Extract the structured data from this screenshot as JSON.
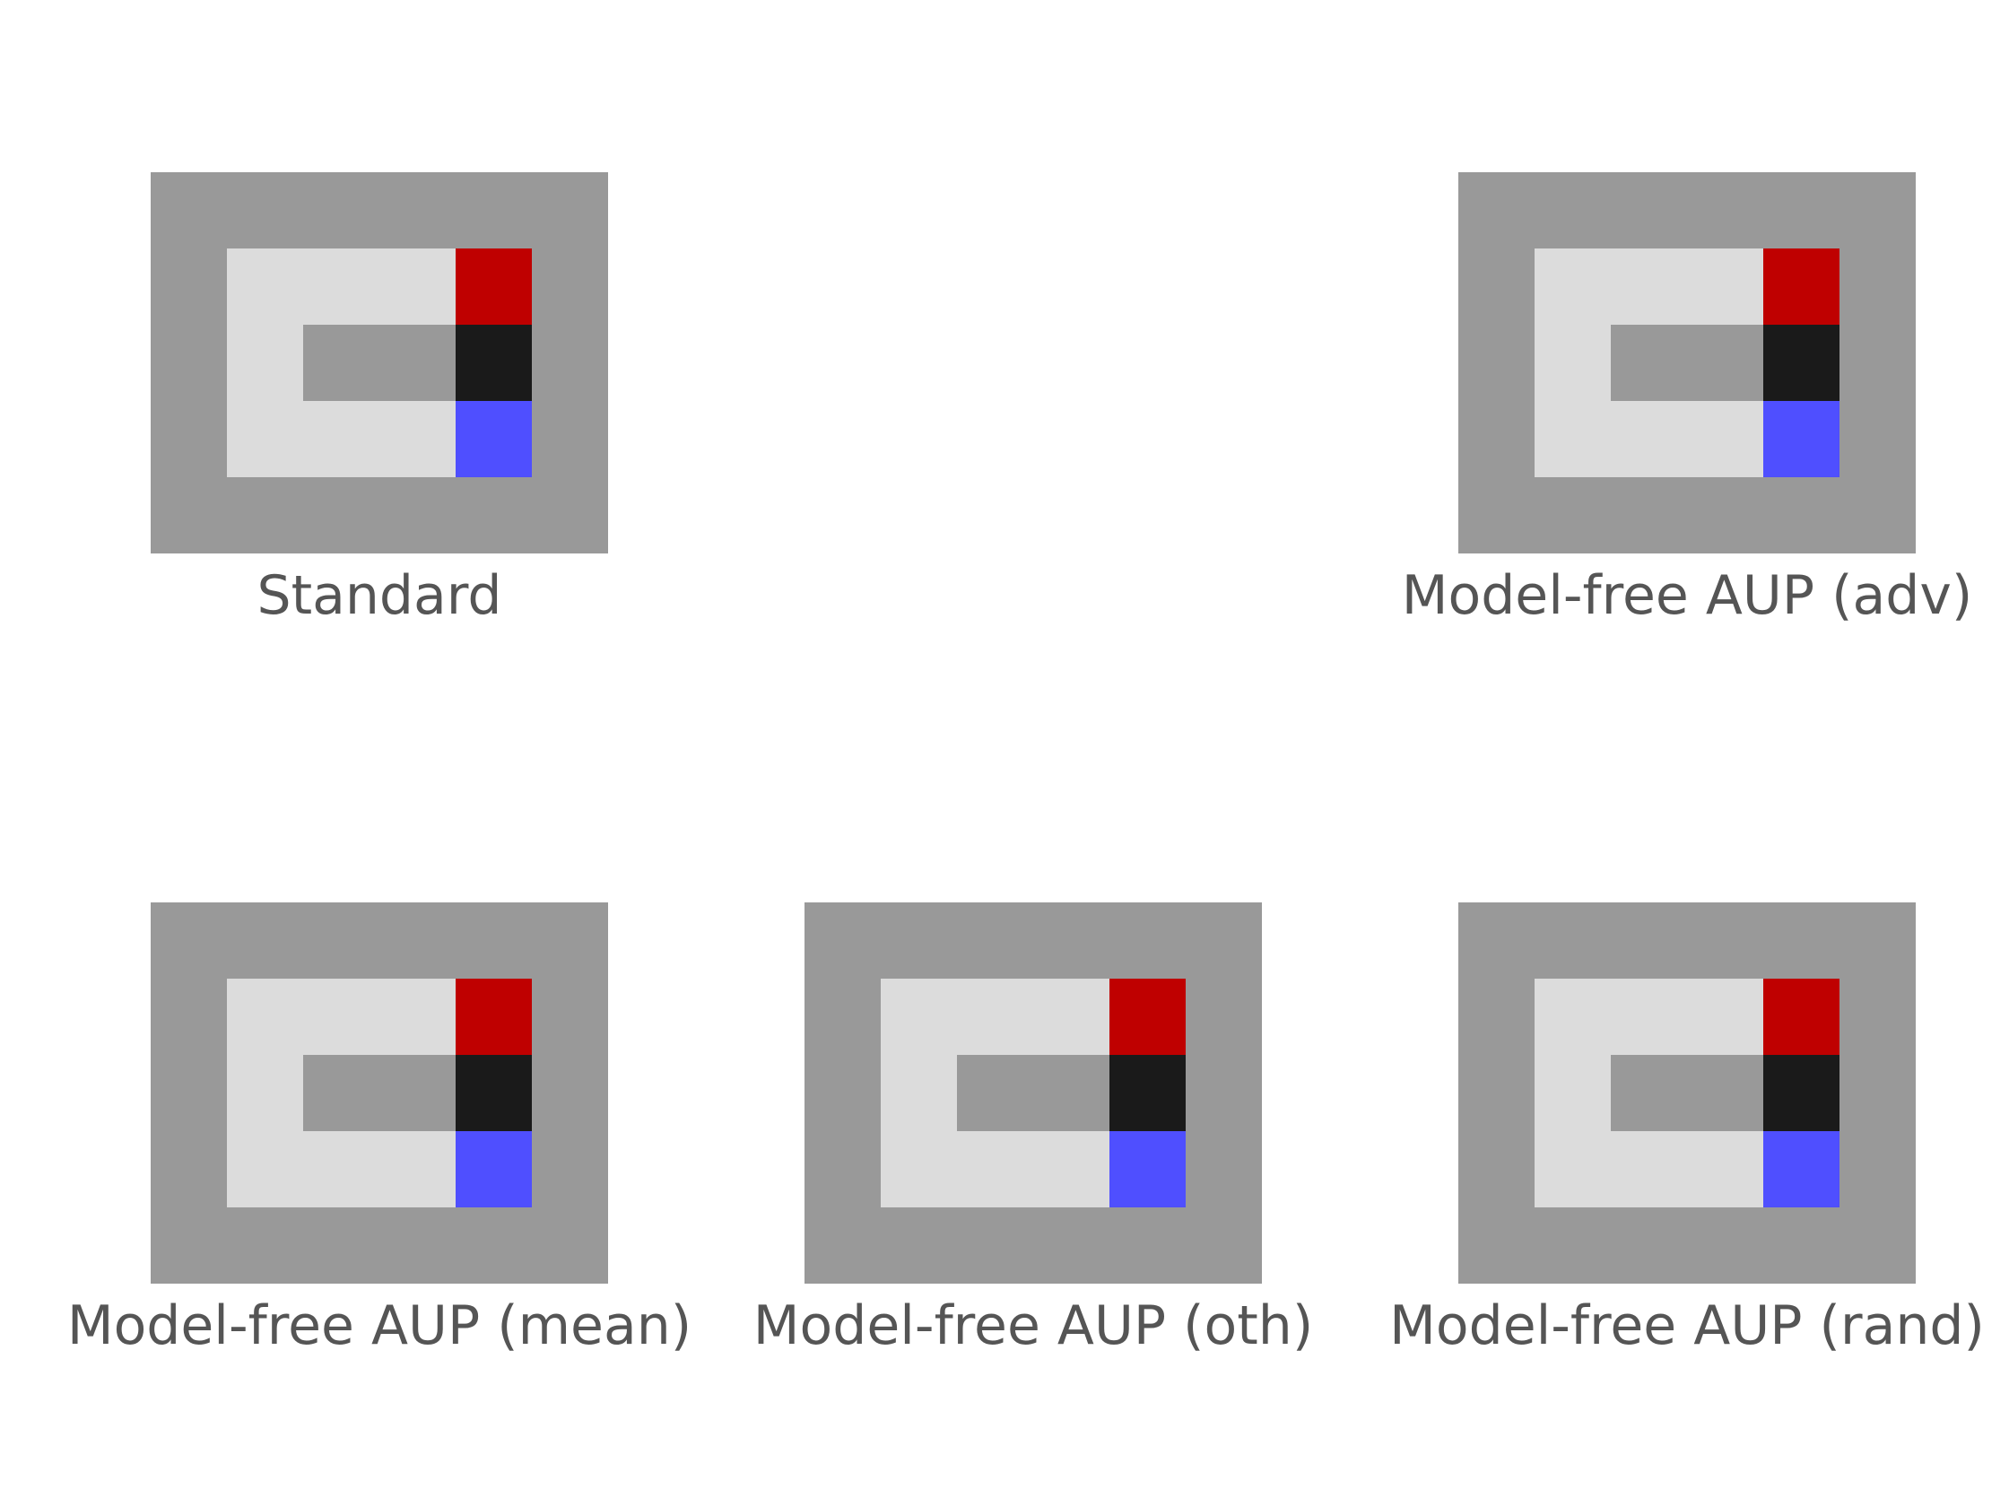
{
  "colors": {
    "wall": "#999999",
    "floor": "#dcdcdc",
    "goal": "#bf0000",
    "agent": "#1a1a1a",
    "box": "#4f4fff",
    "caption": "#555555"
  },
  "legend": {
    "W": "wall",
    "F": "floor",
    "G": "goal",
    "A": "agent",
    "B": "box"
  },
  "grid_layout": [
    [
      "W",
      "W",
      "W",
      "W",
      "W",
      "W"
    ],
    [
      "W",
      "F",
      "F",
      "F",
      "G",
      "W"
    ],
    [
      "W",
      "F",
      "W",
      "W",
      "A",
      "W"
    ],
    [
      "W",
      "F",
      "F",
      "F",
      "B",
      "W"
    ],
    [
      "W",
      "W",
      "W",
      "W",
      "W",
      "W"
    ]
  ],
  "panels": [
    {
      "id": "standard",
      "caption": "Standard"
    },
    {
      "id": "adv",
      "caption": "Model-free AUP (adv)"
    },
    {
      "id": "mean",
      "caption": "Model-free AUP (mean)"
    },
    {
      "id": "oth",
      "caption": "Model-free AUP (oth)"
    },
    {
      "id": "rand",
      "caption": "Model-free AUP (rand)"
    }
  ]
}
